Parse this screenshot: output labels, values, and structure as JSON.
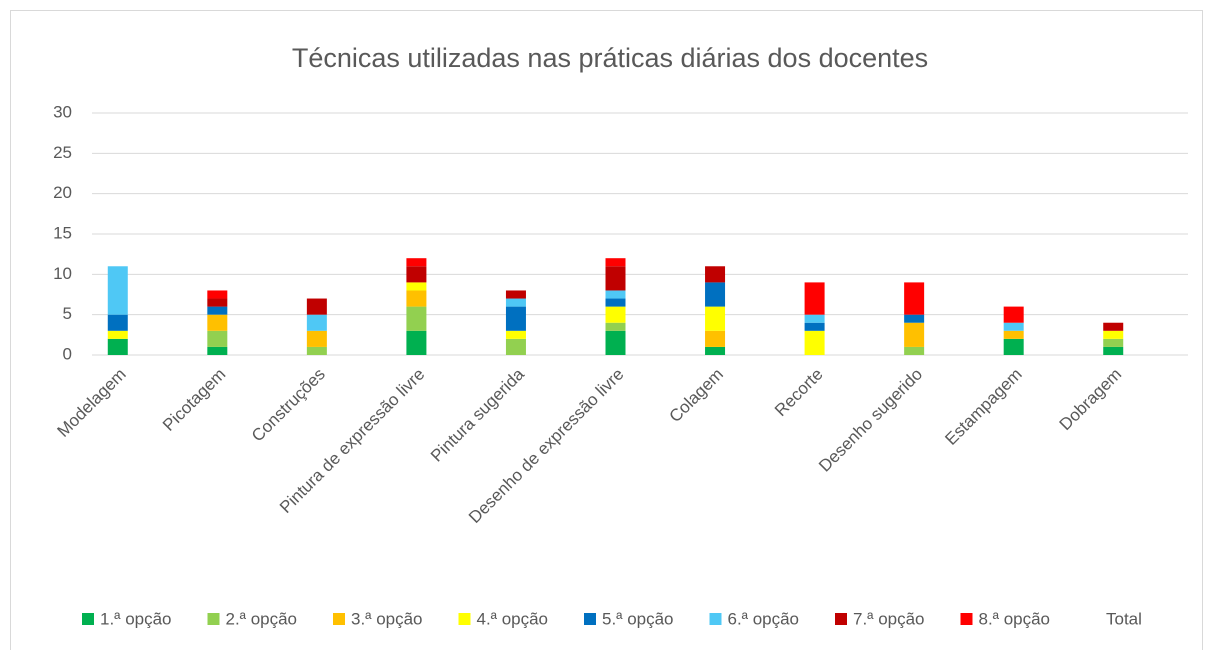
{
  "chart_data": {
    "type": "stacked_bar",
    "title": "Técnicas utilizadas nas práticas diárias dos docentes",
    "categories": [
      "Modelagem",
      "Picotagem",
      "Construções",
      "Pintura de expressão livre",
      "Pintura sugerida",
      "Desenho de expressão livre",
      "Colagem",
      "Recorte",
      "Desenho sugerido",
      "Estampagem",
      "Dobragem"
    ],
    "series": [
      {
        "name": "1.ª opção",
        "color": "#00b050",
        "values": [
          2,
          1,
          0,
          3,
          0,
          3,
          1,
          0,
          0,
          2,
          1
        ]
      },
      {
        "name": "2.ª opção",
        "color": "#92d050",
        "values": [
          0,
          2,
          1,
          3,
          2,
          1,
          0,
          0,
          1,
          0,
          1
        ]
      },
      {
        "name": "3.ª opção",
        "color": "#ffc000",
        "values": [
          0,
          2,
          2,
          2,
          0,
          0,
          2,
          0,
          3,
          1,
          0
        ]
      },
      {
        "name": "4.ª opção",
        "color": "#ffff00",
        "values": [
          1,
          0,
          0,
          1,
          1,
          2,
          3,
          3,
          0,
          0,
          1
        ]
      },
      {
        "name": "5.ª opção",
        "color": "#0070c0",
        "values": [
          2,
          1,
          0,
          0,
          3,
          1,
          3,
          1,
          1,
          0,
          0
        ]
      },
      {
        "name": "6.ª opção",
        "color": "#4fc8f5",
        "values": [
          6,
          0,
          2,
          0,
          1,
          1,
          0,
          1,
          0,
          1,
          0
        ]
      },
      {
        "name": "7.ª opção",
        "color": "#c00000",
        "values": [
          0,
          1,
          2,
          2,
          1,
          3,
          2,
          0,
          0,
          0,
          1
        ]
      },
      {
        "name": "8.ª opção",
        "color": "#ff0000",
        "values": [
          0,
          1,
          0,
          1,
          0,
          1,
          0,
          4,
          4,
          2,
          0
        ]
      },
      {
        "name": "Total",
        "color": "none",
        "values": [
          11,
          8,
          7,
          12,
          8,
          12,
          11,
          9,
          9,
          6,
          4
        ]
      }
    ],
    "ylim": [
      0,
      30
    ],
    "yticks": [
      0,
      5,
      10,
      15,
      20,
      25,
      30
    ],
    "grid": true,
    "legend": "bottom"
  }
}
